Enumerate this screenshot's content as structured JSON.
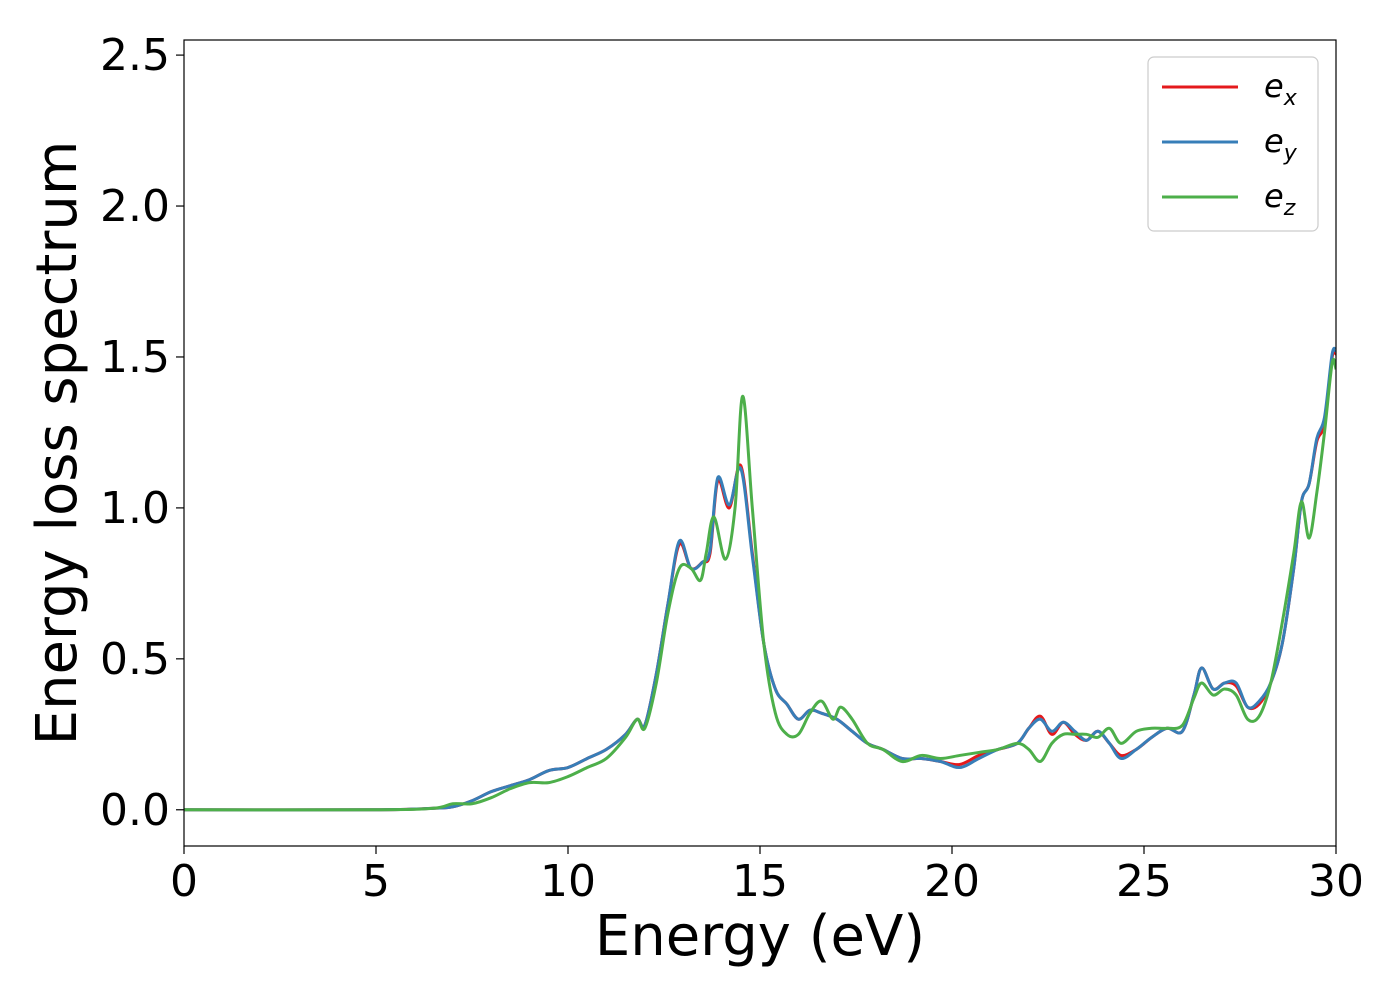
{
  "chart_data": {
    "type": "line",
    "xlabel": "Energy (eV)",
    "ylabel": "Energy loss spectrum",
    "xlim": [
      0,
      30
    ],
    "ylim": [
      -0.12,
      2.55
    ],
    "xticks": [
      0,
      5,
      10,
      15,
      20,
      25,
      30
    ],
    "yticks": [
      0.0,
      0.5,
      1.0,
      1.5,
      2.0,
      2.5
    ],
    "xtick_labels": [
      "0",
      "5",
      "10",
      "15",
      "20",
      "25",
      "30"
    ],
    "ytick_labels": [
      "0.0",
      "0.5",
      "1.0",
      "1.5",
      "2.0",
      "2.5"
    ],
    "grid": false,
    "legend_position": "top-right",
    "series": [
      {
        "name": "e_x",
        "label_base": "e",
        "label_sub": "x",
        "color": "#e41a1c",
        "x": [
          0,
          5,
          6.5,
          7,
          7.5,
          8,
          8.5,
          9,
          9.5,
          10,
          10.5,
          11,
          11.5,
          11.8,
          12,
          12.3,
          12.6,
          12.9,
          13.2,
          13.5,
          13.7,
          13.9,
          14.2,
          14.5,
          14.8,
          15.1,
          15.4,
          15.7,
          16,
          16.3,
          16.6,
          17,
          17.4,
          17.8,
          18.2,
          18.7,
          19.2,
          19.7,
          20.2,
          20.7,
          21.2,
          21.7,
          22,
          22.3,
          22.6,
          22.9,
          23.2,
          23.5,
          23.8,
          24.1,
          24.4,
          24.8,
          25.2,
          25.6,
          26,
          26.3,
          26.5,
          26.8,
          27.1,
          27.4,
          27.7,
          28,
          28.3,
          28.6,
          28.9,
          29.1,
          29.3,
          29.5,
          29.7,
          29.9,
          30
        ],
        "values": [
          0,
          0.0,
          0.005,
          0.01,
          0.03,
          0.06,
          0.08,
          0.1,
          0.13,
          0.14,
          0.17,
          0.2,
          0.25,
          0.3,
          0.28,
          0.45,
          0.68,
          0.88,
          0.8,
          0.82,
          0.85,
          1.09,
          1.0,
          1.14,
          0.85,
          0.55,
          0.4,
          0.35,
          0.3,
          0.33,
          0.32,
          0.3,
          0.26,
          0.22,
          0.2,
          0.17,
          0.17,
          0.16,
          0.15,
          0.18,
          0.2,
          0.22,
          0.27,
          0.31,
          0.25,
          0.29,
          0.25,
          0.23,
          0.26,
          0.22,
          0.18,
          0.2,
          0.24,
          0.27,
          0.26,
          0.38,
          0.47,
          0.4,
          0.42,
          0.41,
          0.34,
          0.35,
          0.42,
          0.55,
          0.8,
          1.02,
          1.08,
          1.22,
          1.28,
          1.5,
          1.51
        ]
      },
      {
        "name": "e_y",
        "label_base": "e",
        "label_sub": "y",
        "color": "#377eb8",
        "x": [
          0,
          5,
          6.5,
          7,
          7.5,
          8,
          8.5,
          9,
          9.5,
          10,
          10.5,
          11,
          11.5,
          11.8,
          12,
          12.3,
          12.6,
          12.9,
          13.2,
          13.5,
          13.7,
          13.9,
          14.2,
          14.5,
          14.8,
          15.1,
          15.4,
          15.7,
          16,
          16.3,
          16.6,
          17,
          17.4,
          17.8,
          18.2,
          18.7,
          19.2,
          19.7,
          20.2,
          20.7,
          21.2,
          21.7,
          22,
          22.3,
          22.6,
          22.9,
          23.2,
          23.5,
          23.8,
          24.1,
          24.4,
          24.8,
          25.2,
          25.6,
          26,
          26.3,
          26.5,
          26.8,
          27.1,
          27.4,
          27.7,
          28,
          28.3,
          28.6,
          28.9,
          29.1,
          29.3,
          29.5,
          29.7,
          29.9,
          30
        ],
        "values": [
          0,
          0.0,
          0.005,
          0.01,
          0.03,
          0.06,
          0.08,
          0.1,
          0.13,
          0.14,
          0.17,
          0.2,
          0.25,
          0.3,
          0.28,
          0.45,
          0.68,
          0.89,
          0.8,
          0.82,
          0.86,
          1.1,
          1.01,
          1.13,
          0.84,
          0.55,
          0.4,
          0.35,
          0.3,
          0.33,
          0.32,
          0.3,
          0.26,
          0.22,
          0.2,
          0.17,
          0.17,
          0.16,
          0.14,
          0.17,
          0.2,
          0.22,
          0.27,
          0.3,
          0.26,
          0.29,
          0.26,
          0.23,
          0.26,
          0.22,
          0.17,
          0.2,
          0.24,
          0.27,
          0.26,
          0.38,
          0.47,
          0.4,
          0.42,
          0.42,
          0.34,
          0.36,
          0.42,
          0.55,
          0.8,
          1.02,
          1.08,
          1.23,
          1.3,
          1.51,
          1.52
        ]
      },
      {
        "name": "e_z",
        "label_base": "e",
        "label_sub": "z",
        "color": "#4daf4a",
        "x": [
          0,
          5,
          6.5,
          7,
          7.5,
          8,
          8.5,
          9,
          9.5,
          10,
          10.5,
          11,
          11.5,
          11.8,
          12,
          12.3,
          12.6,
          12.9,
          13.2,
          13.45,
          13.6,
          13.8,
          14.1,
          14.35,
          14.55,
          14.8,
          15.1,
          15.4,
          15.7,
          16,
          16.3,
          16.6,
          16.9,
          17.1,
          17.4,
          17.8,
          18.2,
          18.7,
          19.2,
          19.7,
          20.2,
          20.7,
          21.2,
          21.7,
          22,
          22.3,
          22.6,
          22.9,
          23.2,
          23.5,
          23.8,
          24.1,
          24.4,
          24.8,
          25.2,
          25.6,
          26,
          26.3,
          26.5,
          26.8,
          27.1,
          27.4,
          27.7,
          28,
          28.3,
          28.6,
          28.9,
          29.1,
          29.3,
          29.5,
          29.7,
          29.9,
          30
        ],
        "values": [
          0,
          0.0,
          0.005,
          0.02,
          0.02,
          0.04,
          0.07,
          0.09,
          0.09,
          0.11,
          0.14,
          0.17,
          0.24,
          0.3,
          0.27,
          0.42,
          0.65,
          0.8,
          0.8,
          0.76,
          0.85,
          0.97,
          0.83,
          1.0,
          1.37,
          1.0,
          0.55,
          0.32,
          0.25,
          0.25,
          0.32,
          0.36,
          0.3,
          0.34,
          0.3,
          0.22,
          0.2,
          0.16,
          0.18,
          0.17,
          0.18,
          0.19,
          0.2,
          0.22,
          0.2,
          0.16,
          0.22,
          0.25,
          0.25,
          0.25,
          0.24,
          0.27,
          0.22,
          0.26,
          0.27,
          0.27,
          0.28,
          0.37,
          0.42,
          0.38,
          0.4,
          0.38,
          0.3,
          0.31,
          0.42,
          0.62,
          0.85,
          1.02,
          0.9,
          1.05,
          1.25,
          1.48,
          1.46
        ]
      }
    ]
  }
}
